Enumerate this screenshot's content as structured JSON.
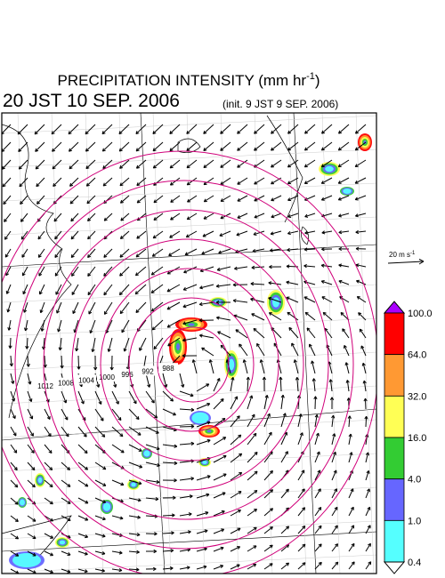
{
  "header": {
    "title": "PRECIPITATION INTENSITY (mm hr",
    "title_exponent": "-1",
    "title_close": ")",
    "valid_time": "20 JST 10 SEP. 2006",
    "init_time": "(init. 9 JST 9 SEP. 2006)"
  },
  "wind_scale": {
    "label": "20 m s",
    "exponent": "-1"
  },
  "colorbar": {
    "labels": [
      "100.0",
      "64.0",
      "32.0",
      "16.0",
      "4.0",
      "1.0",
      "0.4"
    ],
    "colors": [
      "#ff0000",
      "#ff9933",
      "#ffff55",
      "#33cc33",
      "#6666ff",
      "#55ffff"
    ],
    "over_color": "#aa00ff",
    "under_color": "#ffffff"
  },
  "isobars": {
    "labels": [
      "1012",
      "1008",
      "1004",
      "1000",
      "996",
      "992",
      "988"
    ]
  }
}
